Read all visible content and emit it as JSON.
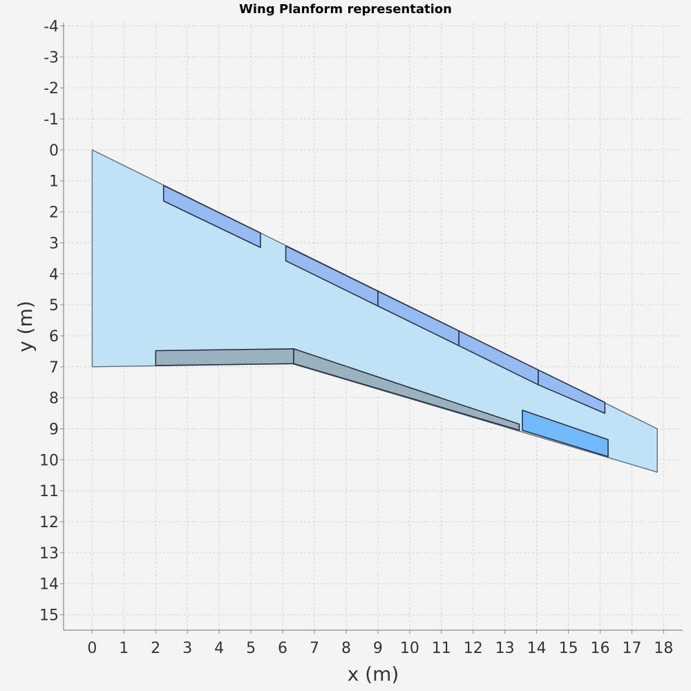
{
  "chart_data": {
    "type": "area",
    "title": "Wing Planform representation",
    "xlabel": "x (m)",
    "ylabel": "y (m)",
    "xlim": [
      -0.9,
      18.6
    ],
    "ylim": [
      -4.1,
      15.5
    ],
    "y_inverted": true,
    "grid": true,
    "x_ticks": [
      0,
      1,
      2,
      3,
      4,
      5,
      6,
      7,
      8,
      9,
      10,
      11,
      12,
      13,
      14,
      15,
      16,
      17,
      18
    ],
    "y_ticks": [
      -4,
      -3,
      -2,
      -1,
      0,
      1,
      2,
      3,
      4,
      5,
      6,
      7,
      8,
      9,
      10,
      11,
      12,
      13,
      14,
      15
    ],
    "colors": {
      "wing_fill": "#bde0f6",
      "wing_stroke": "#5f6e7a",
      "slat_fill": "#93b8f2",
      "slat_stroke": "#2a3448",
      "flap_fill": "#98aebf",
      "flap_stroke": "#2a3040",
      "aileron_fill": "#6fb6fa",
      "aileron_stroke": "#243042"
    },
    "series": [
      {
        "kind": "wing",
        "points": [
          [
            0,
            0
          ],
          [
            17.8,
            9.0
          ],
          [
            17.8,
            10.4
          ],
          [
            6.3,
            6.9
          ],
          [
            0,
            7.0
          ]
        ]
      },
      {
        "kind": "slat",
        "points": [
          [
            2.25,
            1.15
          ],
          [
            5.3,
            2.68
          ],
          [
            5.3,
            3.15
          ],
          [
            2.25,
            1.65
          ]
        ]
      },
      {
        "kind": "slat",
        "points": [
          [
            6.1,
            3.1
          ],
          [
            9.0,
            4.56
          ],
          [
            9.0,
            5.04
          ],
          [
            6.1,
            3.58
          ]
        ]
      },
      {
        "kind": "slat",
        "points": [
          [
            9.0,
            4.56
          ],
          [
            11.55,
            5.84
          ],
          [
            11.55,
            6.32
          ],
          [
            9.0,
            5.04
          ]
        ]
      },
      {
        "kind": "slat",
        "points": [
          [
            11.55,
            5.84
          ],
          [
            14.05,
            7.1
          ],
          [
            14.05,
            7.58
          ],
          [
            11.55,
            6.32
          ]
        ]
      },
      {
        "kind": "slat",
        "points": [
          [
            14.05,
            7.1
          ],
          [
            16.15,
            8.15
          ],
          [
            16.15,
            8.5
          ],
          [
            14.05,
            7.58
          ]
        ]
      },
      {
        "kind": "flap",
        "points": [
          [
            2.0,
            6.48
          ],
          [
            6.35,
            6.42
          ],
          [
            6.35,
            6.9
          ],
          [
            2.0,
            6.96
          ]
        ]
      },
      {
        "kind": "flap",
        "points": [
          [
            6.35,
            6.42
          ],
          [
            13.45,
            8.85
          ],
          [
            13.45,
            9.05
          ],
          [
            6.35,
            6.9
          ]
        ]
      },
      {
        "kind": "aileron",
        "points": [
          [
            13.55,
            8.4
          ],
          [
            16.25,
            9.35
          ],
          [
            16.25,
            9.9
          ],
          [
            13.55,
            9.05
          ]
        ]
      }
    ]
  }
}
